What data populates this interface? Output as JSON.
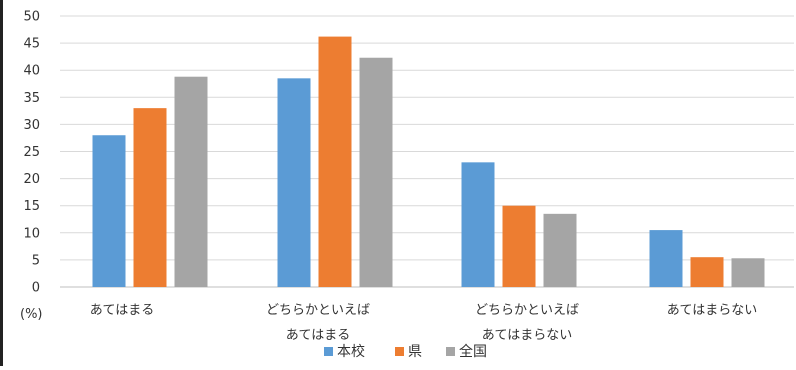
{
  "chart_data": {
    "type": "bar",
    "title": "",
    "xlabel": "",
    "ylabel": "",
    "unit_label": "(%)",
    "ylim": [
      0,
      50
    ],
    "yticks": [
      0,
      5,
      10,
      15,
      20,
      25,
      30,
      35,
      40,
      45,
      50
    ],
    "grid": true,
    "legend_position": "bottom",
    "categories": [
      [
        "あてはまる"
      ],
      [
        "どちらかといえば",
        "あてはまる"
      ],
      [
        "どちらかといえば",
        "あてはまらない"
      ],
      [
        "あてはまらない"
      ]
    ],
    "series": [
      {
        "name": "本校",
        "color": "#5b9bd5",
        "values": [
          28,
          38.5,
          23,
          10.5
        ]
      },
      {
        "name": "県",
        "color": "#ed7d31",
        "values": [
          33,
          46.2,
          15,
          5.5
        ]
      },
      {
        "name": "全国",
        "color": "#a5a5a5",
        "values": [
          38.8,
          42.3,
          13.5,
          5.3
        ]
      }
    ]
  }
}
